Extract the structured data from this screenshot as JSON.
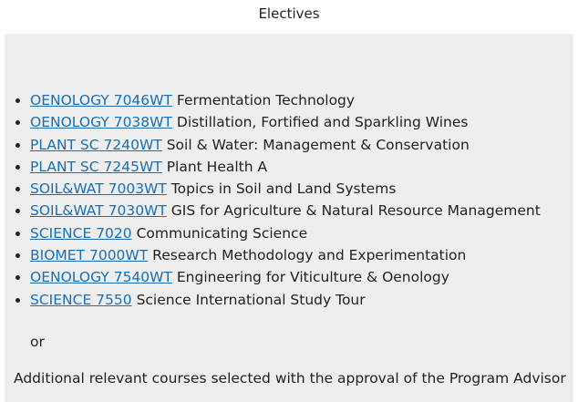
{
  "title": "Electives",
  "items": [
    {
      "code": "OENOLOGY 7046WT",
      "name": "Fermentation Technology"
    },
    {
      "code": "OENOLOGY 7038WT",
      "name": "Distillation, Fortified and Sparkling Wines"
    },
    {
      "code": "PLANT SC 7240WT",
      "name": "Soil & Water: Management & Conservation"
    },
    {
      "code": "PLANT SC 7245WT",
      "name": "Plant Health A"
    },
    {
      "code": "SOIL&WAT 7003WT",
      "name": "Topics in Soil and Land Systems"
    },
    {
      "code": "SOIL&WAT 7030WT",
      "name": "GIS for Agriculture & Natural Resource Management"
    },
    {
      "code": "SCIENCE 7020",
      "name": "Communicating Science"
    },
    {
      "code": "BIOMET 7000WT",
      "name": "Research Methodology and Experimentation"
    },
    {
      "code": "OENOLOGY 7540WT",
      "name": "Engineering for Viticulture & Oenology"
    },
    {
      "code": "SCIENCE 7550",
      "name": "Science International Study Tour"
    }
  ],
  "or": "or",
  "additional": "Additional relevant courses selected with the approval of the Program Advisor",
  "colors": {
    "link": "#1a6fb5",
    "panel": "#eeeeee"
  }
}
